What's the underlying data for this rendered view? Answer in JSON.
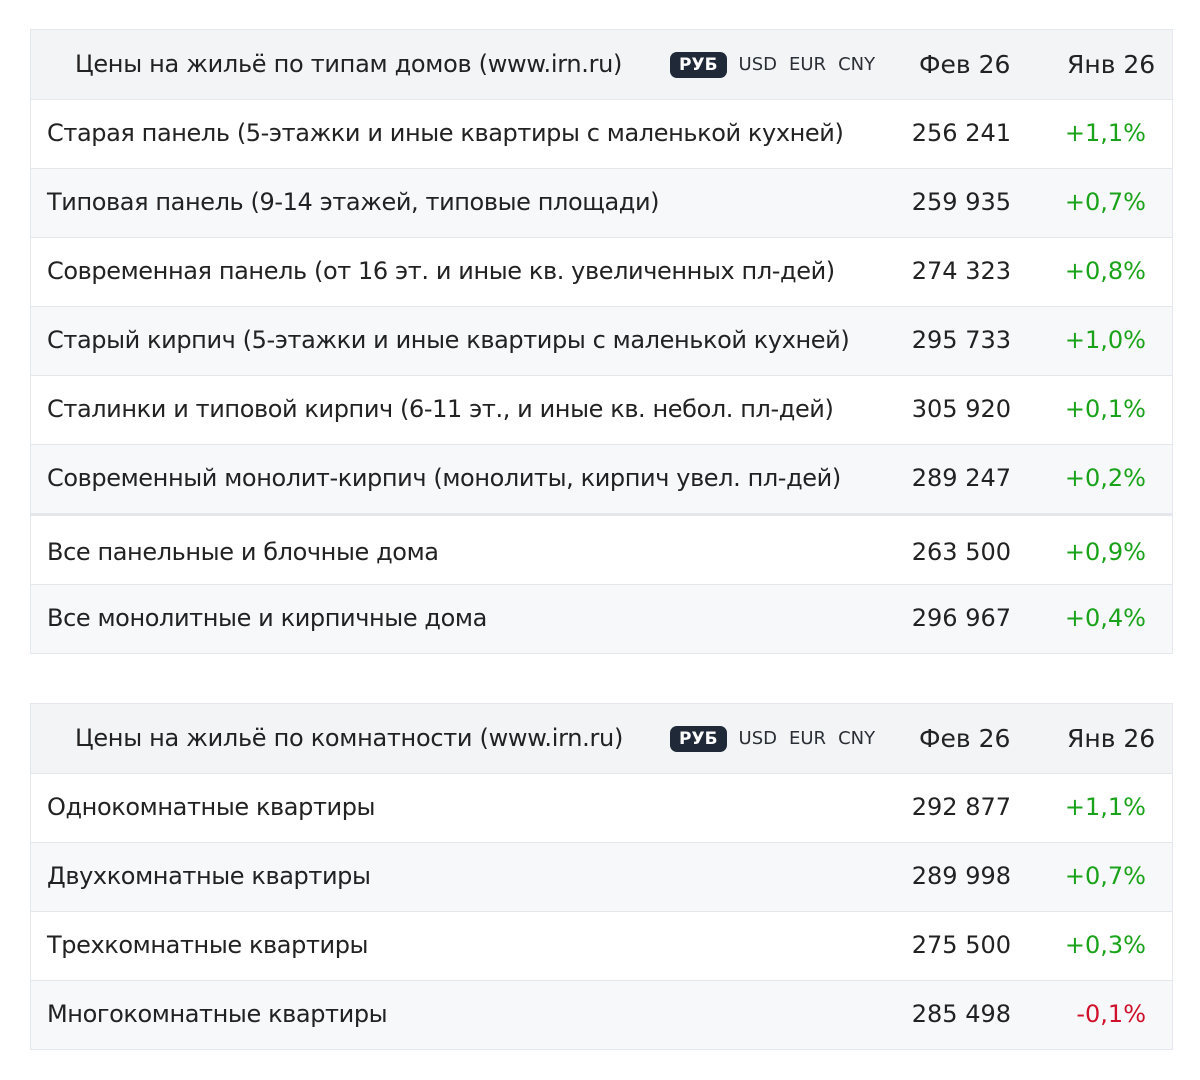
{
  "table1": {
    "title": "Цены на жильё по типам домов (www.irn.ru)",
    "currencies": [
      "РУБ",
      "USD",
      "EUR",
      "CNY"
    ],
    "active_currency": "РУБ",
    "col_current": "Фев 26",
    "col_previous": "Янв 26",
    "rows": [
      {
        "label": "Старая панель (5-этажки и иные квартиры с маленькой кухней)",
        "value": "256 241",
        "change": "+1,1%"
      },
      {
        "label": "Типовая панель (9-14 этажей, типовые площади)",
        "value": "259 935",
        "change": "+0,7%"
      },
      {
        "label": "Современная панель (от 16 эт. и иные кв. увеличенных пл-дей)",
        "value": "274 323",
        "change": "+0,8%"
      },
      {
        "label": "Старый кирпич (5-этажки и иные квартиры с маленькой кухней)",
        "value": "295 733",
        "change": "+1,0%"
      },
      {
        "label": "Сталинки и типовой кирпич (6-11 эт., и иные кв. небол. пл-дей)",
        "value": "305 920",
        "change": "+0,1%"
      },
      {
        "label": "Современный монолит-кирпич (монолиты, кирпич увел. пл-дей)",
        "value": "289 247",
        "change": "+0,2%"
      },
      {
        "label": "Все панельные и блочные дома",
        "value": "263 500",
        "change": "+0,9%"
      },
      {
        "label": "Все монолитные и кирпичные дома",
        "value": "296 967",
        "change": "+0,4%"
      }
    ]
  },
  "table2": {
    "title": "Цены на жильё по комнатности (www.irn.ru)",
    "currencies": [
      "РУБ",
      "USD",
      "EUR",
      "CNY"
    ],
    "active_currency": "РУБ",
    "col_current": "Фев 26",
    "col_previous": "Янв 26",
    "rows": [
      {
        "label": "Однокомнатные квартиры",
        "value": "292 877",
        "change": "+1,1%"
      },
      {
        "label": "Двухкомнатные квартиры",
        "value": "289 998",
        "change": "+0,7%"
      },
      {
        "label": "Трехкомнатные квартиры",
        "value": "275 500",
        "change": "+0,3%"
      },
      {
        "label": "Многокомнатные квартиры",
        "value": "285 498",
        "change": "-0,1%"
      }
    ]
  },
  "colors": {
    "positive": "#1aa31a",
    "negative": "#d0112b",
    "header_bg": "#f3f4f6",
    "active_badge": "#1f2937"
  }
}
